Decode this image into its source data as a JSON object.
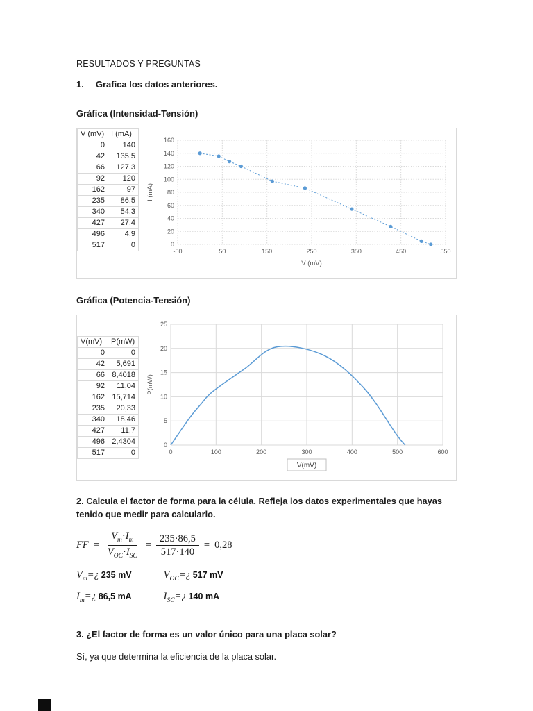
{
  "page": {
    "title": "RESULTADOS Y PREGUNTAS",
    "q1_num": "1.",
    "q1": "Grafica los datos anteriores.",
    "chart1_heading": "Gráfica (Intensidad-Tensión)",
    "chart2_heading": "Gráfica (Potencia-Tensión)",
    "q2": "2. Calcula el factor de forma para la célula. Refleja los datos experimentales que hayas tenido que medir para calcularlo.",
    "q3": "3. ¿El factor de forma es un valor único para una placa solar?",
    "a3": "Sí, ya que determina la eficiencia de la placa solar."
  },
  "table1": {
    "headers": [
      "V (mV)",
      "I (mA)"
    ],
    "rows": [
      [
        "0",
        "140"
      ],
      [
        "42",
        "135,5"
      ],
      [
        "66",
        "127,3"
      ],
      [
        "92",
        "120"
      ],
      [
        "162",
        "97"
      ],
      [
        "235",
        "86,5"
      ],
      [
        "340",
        "54,3"
      ],
      [
        "427",
        "27,4"
      ],
      [
        "496",
        "4,9"
      ],
      [
        "517",
        "0"
      ]
    ]
  },
  "table2": {
    "headers": [
      "V(mV)",
      "P(mW)"
    ],
    "rows": [
      [
        "0",
        "0"
      ],
      [
        "42",
        "5,691"
      ],
      [
        "66",
        "8,4018"
      ],
      [
        "92",
        "11,04"
      ],
      [
        "162",
        "15,714"
      ],
      [
        "235",
        "20,33"
      ],
      [
        "340",
        "18,46"
      ],
      [
        "427",
        "11,7"
      ],
      [
        "496",
        "2,4304"
      ],
      [
        "517",
        "0"
      ]
    ]
  },
  "formula": {
    "ff": "FF",
    "eq": "=",
    "f1n_v": "V",
    "f1n_vsub": "m",
    "f1n_dot": "·",
    "f1n_i": "I",
    "f1n_isub": "m",
    "f1d_v": "V",
    "f1d_vsub": "OC",
    "f1d_dot": "·",
    "f1d_i": "I",
    "f1d_isub": "SC",
    "f2n": "235·86,5",
    "f2d": "517·140",
    "result": "0,28"
  },
  "values": {
    "vm_var": "V",
    "vm_sub": "m",
    "vm_eq": "=¿",
    "vm_val": "235 mV",
    "voc_var": "V",
    "voc_sub": "OC",
    "voc_eq": "=¿",
    "voc_val": "517 mV",
    "im_var": "I",
    "im_sub": "m",
    "im_eq": "=¿",
    "im_val": "86,5 mA",
    "isc_var": "I",
    "isc_sub": "SC",
    "isc_eq": "=¿",
    "isc_val": "140 mA"
  },
  "chart_data": [
    {
      "type": "scatter",
      "title": "",
      "x": [
        0,
        42,
        66,
        92,
        162,
        235,
        340,
        427,
        496,
        517
      ],
      "y": [
        140,
        135.5,
        127.3,
        120,
        97,
        86.5,
        54.3,
        27.4,
        4.9,
        0
      ],
      "xlabel": "V (mV)",
      "ylabel": "I (mA)",
      "xlim": [
        -50,
        550
      ],
      "xstep": 100,
      "ylim": [
        0,
        160
      ],
      "ystep": 20,
      "xticks": [
        "-50",
        "50",
        "150",
        "250",
        "350",
        "450",
        "550"
      ],
      "yticks": [
        "0",
        "20",
        "40",
        "60",
        "80",
        "100",
        "120",
        "140",
        "160"
      ],
      "grid": true,
      "grid_color": "#d9d9d9",
      "grid_dash": "1.5 2",
      "color": "#5b9bd5",
      "marker": true,
      "line": "dotted",
      "smooth": false,
      "xlabel_boxed": false,
      "legend": "none"
    },
    {
      "type": "line",
      "title": "",
      "x": [
        0,
        42,
        66,
        92,
        162,
        235,
        340,
        427,
        496,
        517
      ],
      "y": [
        0,
        5.691,
        8.4018,
        11.04,
        15.714,
        20.33,
        18.46,
        11.7,
        2.4304,
        0
      ],
      "xlabel": "V(mV)",
      "ylabel": "P(mW)",
      "xlim": [
        0,
        600
      ],
      "xstep": 100,
      "ylim": [
        0,
        25
      ],
      "ystep": 5,
      "xticks": [
        "0",
        "100",
        "200",
        "300",
        "400",
        "500",
        "600"
      ],
      "yticks": [
        "0",
        "5",
        "10",
        "15",
        "20",
        "25"
      ],
      "grid": true,
      "grid_color": "#d9d9d9",
      "grid_dash": null,
      "color": "#5b9bd5",
      "marker": false,
      "line": "solid",
      "smooth": true,
      "xlabel_boxed": true,
      "legend": "none"
    }
  ]
}
